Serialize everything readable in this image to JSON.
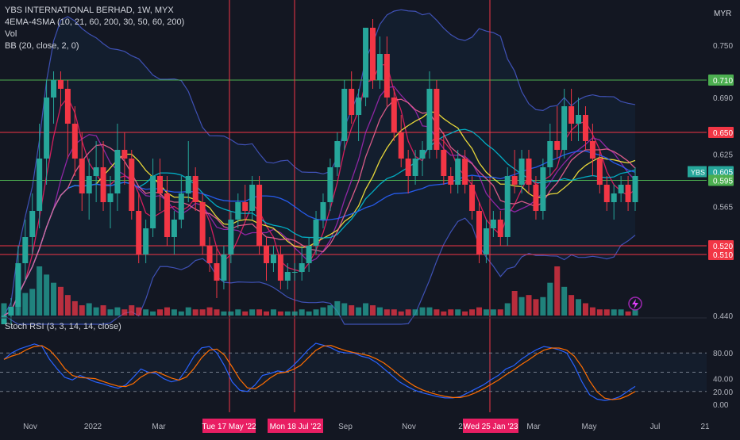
{
  "header": {
    "symbol_line": "YBS INTERNATIONAL BERHAD, 1W, MYX",
    "indicator_ema": "4EMA-4SMA (10, 21, 60, 200, 30, 50, 60, 200)",
    "indicator_vol": "Vol",
    "indicator_bb": "BB (20, close, 2, 0)",
    "currency": "MYR",
    "ticker_badge": "YBS",
    "lightning_icon": "lightning-icon"
  },
  "stoch_panel": {
    "label": "Stoch RSI (3, 3, 14, 14, close)",
    "ticks": [
      "80.00",
      "40.00",
      "20.00",
      "0.00"
    ]
  },
  "price_axis": {
    "ticks": [
      "0.750",
      "0.690",
      "0.625",
      "0.565",
      "0.440"
    ],
    "labels": [
      {
        "text": "0.710",
        "color": "#4caf50"
      },
      {
        "text": "0.650",
        "color": "#f23645"
      },
      {
        "text": "0.605",
        "color": "#26a69a"
      },
      {
        "text": "0.595",
        "color": "#4caf50"
      },
      {
        "text": "0.520",
        "color": "#f23645"
      },
      {
        "text": "0.510",
        "color": "#f23645"
      }
    ]
  },
  "time_axis": {
    "ticks": [
      "Nov",
      "2022",
      "Mar",
      "Jul",
      "Sep",
      "Nov",
      "2",
      "Mar",
      "May",
      "Jul",
      "21"
    ],
    "highlighted": [
      "Tue 17 May '22",
      "Mon 18 Jul '22",
      "Wed 25 Jan '23"
    ]
  },
  "colors": {
    "background": "#131722",
    "up": "#26a69a",
    "down": "#f23645",
    "bb_band": "#3f51b5",
    "horizontal_green": "#4caf50",
    "horizontal_red": "#f23645",
    "vertical_marker": "#f23645",
    "stoch_k": "#2962ff",
    "stoch_d": "#ff6d00"
  },
  "chart_data": {
    "type": "candlestick",
    "title": "YBS INTERNATIONAL BERHAD, 1W, MYX",
    "ylabel": "MYR",
    "ylim": [
      0.43,
      0.8
    ],
    "horizontal_levels": [
      0.71,
      0.65,
      0.595,
      0.52,
      0.51
    ],
    "vertical_markers": [
      "Tue 17 May '22",
      "Mon 18 Jul '22",
      "Wed 25 Jan '23"
    ],
    "candles": [
      [
        0.43,
        0.44,
        0.43,
        0.44
      ],
      [
        0.44,
        0.46,
        0.43,
        0.45
      ],
      [
        0.45,
        0.52,
        0.44,
        0.5
      ],
      [
        0.5,
        0.55,
        0.48,
        0.53
      ],
      [
        0.53,
        0.58,
        0.51,
        0.56
      ],
      [
        0.56,
        0.66,
        0.54,
        0.62
      ],
      [
        0.62,
        0.71,
        0.59,
        0.69
      ],
      [
        0.69,
        0.72,
        0.66,
        0.71
      ],
      [
        0.71,
        0.72,
        0.68,
        0.7
      ],
      [
        0.7,
        0.71,
        0.62,
        0.66
      ],
      [
        0.66,
        0.68,
        0.6,
        0.62
      ],
      [
        0.62,
        0.65,
        0.56,
        0.58
      ],
      [
        0.58,
        0.62,
        0.55,
        0.6
      ],
      [
        0.6,
        0.64,
        0.57,
        0.61
      ],
      [
        0.61,
        0.64,
        0.56,
        0.57
      ],
      [
        0.57,
        0.6,
        0.54,
        0.58
      ],
      [
        0.58,
        0.66,
        0.56,
        0.63
      ],
      [
        0.63,
        0.65,
        0.59,
        0.62
      ],
      [
        0.62,
        0.63,
        0.55,
        0.56
      ],
      [
        0.56,
        0.58,
        0.5,
        0.51
      ],
      [
        0.51,
        0.55,
        0.5,
        0.54
      ],
      [
        0.54,
        0.62,
        0.53,
        0.6
      ],
      [
        0.6,
        0.62,
        0.56,
        0.58
      ],
      [
        0.58,
        0.6,
        0.52,
        0.53
      ],
      [
        0.53,
        0.56,
        0.51,
        0.55
      ],
      [
        0.55,
        0.6,
        0.54,
        0.58
      ],
      [
        0.58,
        0.64,
        0.57,
        0.6
      ],
      [
        0.6,
        0.61,
        0.56,
        0.57
      ],
      [
        0.57,
        0.58,
        0.51,
        0.52
      ],
      [
        0.52,
        0.53,
        0.49,
        0.5
      ],
      [
        0.5,
        0.52,
        0.46,
        0.48
      ],
      [
        0.48,
        0.52,
        0.47,
        0.51
      ],
      [
        0.51,
        0.56,
        0.5,
        0.55
      ],
      [
        0.55,
        0.58,
        0.54,
        0.57
      ],
      [
        0.57,
        0.59,
        0.55,
        0.56
      ],
      [
        0.56,
        0.6,
        0.55,
        0.59
      ],
      [
        0.59,
        0.6,
        0.51,
        0.52
      ],
      [
        0.52,
        0.53,
        0.48,
        0.5
      ],
      [
        0.5,
        0.52,
        0.49,
        0.51
      ],
      [
        0.51,
        0.52,
        0.47,
        0.48
      ],
      [
        0.48,
        0.5,
        0.47,
        0.49
      ],
      [
        0.49,
        0.5,
        0.48,
        0.49
      ],
      [
        0.49,
        0.52,
        0.48,
        0.5
      ],
      [
        0.5,
        0.53,
        0.49,
        0.52
      ],
      [
        0.52,
        0.56,
        0.51,
        0.55
      ],
      [
        0.55,
        0.58,
        0.54,
        0.57
      ],
      [
        0.57,
        0.62,
        0.56,
        0.61
      ],
      [
        0.61,
        0.65,
        0.6,
        0.64
      ],
      [
        0.64,
        0.71,
        0.63,
        0.7
      ],
      [
        0.7,
        0.72,
        0.66,
        0.67
      ],
      [
        0.67,
        0.7,
        0.64,
        0.69
      ],
      [
        0.69,
        0.77,
        0.68,
        0.77
      ],
      [
        0.77,
        0.78,
        0.7,
        0.71
      ],
      [
        0.71,
        0.76,
        0.7,
        0.74
      ],
      [
        0.74,
        0.76,
        0.68,
        0.69
      ],
      [
        0.69,
        0.7,
        0.64,
        0.65
      ],
      [
        0.65,
        0.67,
        0.61,
        0.62
      ],
      [
        0.62,
        0.63,
        0.58,
        0.6
      ],
      [
        0.6,
        0.63,
        0.59,
        0.62
      ],
      [
        0.62,
        0.64,
        0.6,
        0.63
      ],
      [
        0.63,
        0.72,
        0.62,
        0.7
      ],
      [
        0.7,
        0.71,
        0.62,
        0.63
      ],
      [
        0.63,
        0.65,
        0.59,
        0.6
      ],
      [
        0.6,
        0.61,
        0.58,
        0.59
      ],
      [
        0.59,
        0.63,
        0.58,
        0.62
      ],
      [
        0.62,
        0.63,
        0.58,
        0.59
      ],
      [
        0.59,
        0.6,
        0.55,
        0.56
      ],
      [
        0.56,
        0.57,
        0.5,
        0.51
      ],
      [
        0.51,
        0.55,
        0.5,
        0.54
      ],
      [
        0.54,
        0.56,
        0.53,
        0.55
      ],
      [
        0.55,
        0.56,
        0.52,
        0.53
      ],
      [
        0.53,
        0.61,
        0.52,
        0.6
      ],
      [
        0.6,
        0.63,
        0.58,
        0.59
      ],
      [
        0.59,
        0.63,
        0.58,
        0.62
      ],
      [
        0.62,
        0.63,
        0.58,
        0.59
      ],
      [
        0.59,
        0.6,
        0.55,
        0.56
      ],
      [
        0.56,
        0.62,
        0.55,
        0.61
      ],
      [
        0.61,
        0.66,
        0.6,
        0.64
      ],
      [
        0.64,
        0.68,
        0.62,
        0.63
      ],
      [
        0.63,
        0.7,
        0.62,
        0.68
      ],
      [
        0.68,
        0.7,
        0.64,
        0.66
      ],
      [
        0.66,
        0.69,
        0.64,
        0.67
      ],
      [
        0.67,
        0.68,
        0.63,
        0.64
      ],
      [
        0.64,
        0.66,
        0.6,
        0.62
      ],
      [
        0.62,
        0.63,
        0.58,
        0.59
      ],
      [
        0.59,
        0.6,
        0.56,
        0.57
      ],
      [
        0.57,
        0.59,
        0.55,
        0.58
      ],
      [
        0.58,
        0.6,
        0.57,
        0.59
      ],
      [
        0.59,
        0.6,
        0.56,
        0.57
      ],
      [
        0.57,
        0.61,
        0.56,
        0.6
      ]
    ],
    "volume": [
      6,
      4,
      9,
      11,
      13,
      24,
      20,
      16,
      14,
      10,
      7,
      5,
      6,
      4,
      5,
      3,
      4,
      3,
      5,
      4,
      3,
      2,
      3,
      4,
      3,
      2,
      4,
      3,
      3,
      4,
      3,
      2,
      2,
      3,
      2,
      3,
      3,
      2,
      3,
      2,
      2,
      2,
      3,
      2,
      3,
      4,
      5,
      7,
      6,
      5,
      4,
      6,
      5,
      4,
      3,
      3,
      2,
      3,
      3,
      4,
      4,
      3,
      2,
      3,
      3,
      2,
      3,
      4,
      3,
      3,
      3,
      6,
      12,
      9,
      10,
      8,
      9,
      16,
      24,
      14,
      10,
      8,
      6,
      4,
      3,
      3,
      3,
      3,
      2,
      3
    ],
    "stoch_k": [
      70,
      80,
      86,
      90,
      94,
      90,
      70,
      55,
      42,
      38,
      45,
      40,
      35,
      32,
      28,
      25,
      30,
      42,
      55,
      50,
      48,
      40,
      35,
      38,
      55,
      75,
      88,
      90,
      80,
      60,
      35,
      22,
      20,
      30,
      45,
      48,
      52,
      50,
      60,
      72,
      85,
      95,
      92,
      88,
      82,
      80,
      80,
      75,
      72,
      65,
      55,
      45,
      35,
      28,
      22,
      18,
      15,
      12,
      10,
      10,
      12,
      18,
      24,
      30,
      38,
      45,
      55,
      60,
      70,
      78,
      85,
      90,
      88,
      85,
      80,
      60,
      35,
      15,
      8,
      6,
      8,
      12,
      20,
      28
    ]
  }
}
